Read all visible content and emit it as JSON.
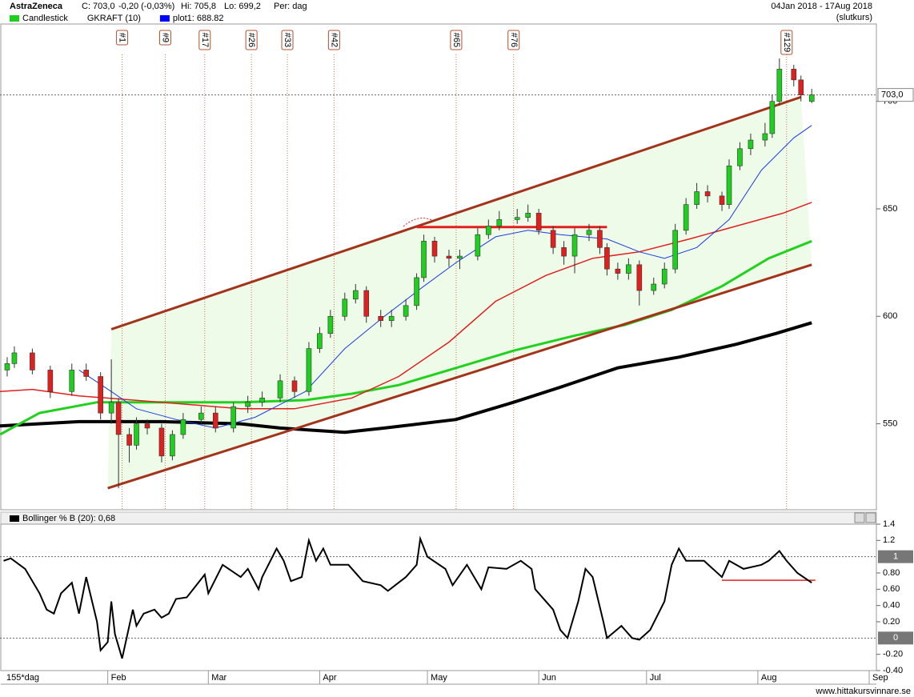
{
  "header": {
    "name": "AstraZeneca",
    "close": "C: 703,0",
    "change": "-0,20 (-0,03%)",
    "high": "Hi: 705,8",
    "low": "Lo: 699,2",
    "period": "Per: dag",
    "range": "04Jan 2018 - 17Aug 2018",
    "note": "(slutkurs)",
    "legend": [
      {
        "label": "Candlestick",
        "color": "#1ecf1e"
      },
      {
        "label": "GKRAFT (10)"
      },
      {
        "label": "plot1: 688.82",
        "color": "#0000ff"
      }
    ]
  },
  "footer": {
    "days": "155*dag",
    "site": "www.hittakursvinnare.se"
  },
  "chart_data": [
    {
      "type": "candlestick",
      "xlim": [
        2,
        246
      ],
      "ylim": [
        510,
        736
      ],
      "yticks": [
        550,
        600,
        650,
        700
      ],
      "xticks": [
        {
          "value": 32,
          "label": "Feb"
        },
        {
          "value": 60,
          "label": "Mar"
        },
        {
          "value": 91,
          "label": "Apr"
        },
        {
          "value": 121,
          "label": "May"
        },
        {
          "value": 152,
          "label": "Jun"
        },
        {
          "value": 182,
          "label": "Jul"
        },
        {
          "value": 213,
          "label": "Aug"
        },
        {
          "value": 244,
          "label": "Sep"
        }
      ],
      "up_color": "#1ecf1e",
      "down_color": "#e0201e",
      "x": [
        4,
        6,
        11,
        16,
        22,
        26,
        30,
        33,
        35,
        38,
        40,
        43,
        47,
        50,
        53,
        58,
        62,
        67,
        71,
        75,
        80,
        84,
        88,
        91,
        94,
        98,
        101,
        104,
        108,
        111,
        115,
        118,
        120,
        123,
        127,
        130,
        135,
        138,
        141,
        146,
        149,
        152,
        156,
        159,
        162,
        166,
        169,
        171,
        174,
        177,
        180,
        184,
        187,
        190,
        193,
        196,
        199,
        203,
        205,
        208,
        211,
        215,
        217,
        219,
        223,
        225,
        228
      ],
      "open": [
        575,
        578,
        583,
        575,
        565,
        575,
        572,
        555,
        560,
        545,
        540,
        550,
        548,
        535,
        545,
        552,
        555,
        548,
        558,
        560,
        562,
        570,
        565,
        585,
        592,
        600,
        608,
        612,
        600,
        598,
        600,
        605,
        618,
        635,
        628,
        627,
        628,
        638,
        642,
        645,
        646,
        648,
        640,
        632,
        628,
        638,
        640,
        632,
        622,
        620,
        624,
        612,
        615,
        622,
        640,
        652,
        658,
        656,
        652,
        670,
        678,
        682,
        685,
        700,
        715,
        710,
        700
      ],
      "high": [
        581,
        586,
        585,
        577,
        578,
        578,
        574,
        580,
        562,
        548,
        553,
        552,
        550,
        547,
        555,
        558,
        558,
        560,
        563,
        565,
        573,
        572,
        588,
        595,
        603,
        611,
        615,
        614,
        603,
        603,
        608,
        620,
        638,
        637,
        631,
        631,
        641,
        645,
        649,
        650,
        652,
        650,
        642,
        635,
        641,
        643,
        642,
        634,
        625,
        627,
        626,
        618,
        625,
        643,
        655,
        662,
        661,
        658,
        673,
        681,
        685,
        690,
        703,
        720,
        717,
        712,
        705.8
      ],
      "low": [
        572,
        576,
        573,
        562,
        563,
        570,
        552,
        550,
        520,
        532,
        538,
        545,
        532,
        533,
        543,
        550,
        546,
        546,
        555,
        558,
        560,
        562,
        563,
        583,
        590,
        598,
        606,
        597,
        595,
        595,
        598,
        603,
        616,
        625,
        623,
        622,
        626,
        636,
        640,
        643,
        644,
        638,
        629,
        624,
        620,
        635,
        629,
        619,
        617,
        617,
        605,
        610,
        613,
        620,
        638,
        650,
        653,
        649,
        650,
        668,
        675,
        679,
        683,
        698,
        707,
        700,
        699.2
      ],
      "close": [
        578,
        583,
        575,
        565,
        575,
        572,
        555,
        560,
        545,
        540,
        550,
        548,
        535,
        545,
        552,
        555,
        548,
        558,
        560,
        562,
        570,
        565,
        585,
        592,
        600,
        608,
        612,
        600,
        598,
        600,
        605,
        618,
        635,
        628,
        627,
        628,
        638,
        642,
        645,
        646,
        648,
        640,
        632,
        628,
        638,
        640,
        632,
        622,
        620,
        624,
        612,
        615,
        622,
        640,
        652,
        658,
        656,
        652,
        670,
        678,
        682,
        685,
        700,
        715,
        710,
        703,
        703
      ],
      "last_price": {
        "value": 703,
        "label": "703,0"
      },
      "overlays": [
        {
          "color": "#000000",
          "width": 4,
          "x": [
            2,
            24,
            47,
            69,
            80,
            98,
            109,
            129,
            145,
            158,
            174,
            191,
            207,
            218,
            228
          ],
          "values": [
            549,
            551,
            551,
            550,
            548,
            546,
            548,
            552,
            560,
            567,
            576,
            581,
            587,
            592,
            597
          ]
        },
        {
          "color": "#22d11e",
          "width": 3,
          "x": [
            2,
            13,
            29,
            47,
            69,
            87,
            100,
            113,
            127,
            145,
            162,
            176,
            189,
            203,
            216,
            228
          ],
          "values": [
            545,
            555,
            560,
            560,
            560,
            561,
            564,
            568,
            575,
            584,
            591,
            596,
            603,
            614,
            627,
            635
          ]
        },
        {
          "color": "#e0201e",
          "width": 1.5,
          "x": [
            2,
            11,
            24,
            47,
            69,
            84,
            100,
            113,
            127,
            140,
            154,
            167,
            180,
            194,
            207,
            220,
            228
          ],
          "values": [
            565,
            566,
            563,
            560,
            557,
            557,
            562,
            572,
            588,
            607,
            619,
            627,
            630,
            636,
            642,
            648,
            653
          ]
        },
        {
          "color": "#1a3ee0",
          "width": 1,
          "x": [
            24,
            33,
            40,
            51,
            62,
            73,
            87,
            98,
            109,
            120,
            129,
            140,
            149,
            158,
            171,
            180,
            187,
            196,
            205,
            214,
            223,
            228
          ],
          "values": [
            575,
            565,
            557,
            552,
            548,
            553,
            565,
            585,
            600,
            614,
            625,
            637,
            640,
            638,
            636,
            630,
            627,
            632,
            645,
            668,
            683,
            688.82
          ]
        }
      ],
      "trendlines": [
        {
          "color": "#a3341b",
          "x": [
            33,
            225
          ],
          "values": [
            594,
            702
          ]
        },
        {
          "color": "#a3341b",
          "x": [
            32,
            228
          ],
          "values": [
            520,
            624
          ]
        },
        {
          "color": "#e0201e",
          "x": [
            118,
            171
          ],
          "values": [
            641.5,
            641.5
          ]
        }
      ],
      "markers": [
        {
          "label": "#1",
          "x": 36
        },
        {
          "label": "#9",
          "x": 48
        },
        {
          "label": "#17",
          "x": 59
        },
        {
          "label": "#26",
          "x": 72
        },
        {
          "label": "#33",
          "x": 82
        },
        {
          "label": "#42",
          "x": 95
        },
        {
          "label": "#65",
          "x": 129
        },
        {
          "label": "#76",
          "x": 145
        },
        {
          "label": "#129",
          "x": 221
        }
      ]
    },
    {
      "type": "line",
      "title": "Bollinger % B (20): 0,68",
      "xlim": [
        2,
        246
      ],
      "ylim": [
        -0.4,
        1.4
      ],
      "yticks": [
        1.4,
        1.2,
        {
          "value": 0.8,
          "label": "0.80"
        },
        {
          "value": 0.6,
          "label": "0.60"
        },
        {
          "value": 0.4,
          "label": "0.40"
        },
        {
          "value": 0.2,
          "label": "0.20"
        },
        {
          "value": -0.2,
          "label": "-0.20"
        },
        {
          "value": -0.4,
          "label": "-0.40"
        }
      ],
      "reference_lines": [
        1,
        0
      ],
      "color": "#000000",
      "x": [
        3,
        5,
        9,
        13,
        15,
        17,
        19,
        22,
        24,
        26,
        29,
        30,
        32,
        33,
        34,
        36,
        39,
        40,
        42,
        45,
        47,
        49,
        51,
        54,
        59,
        60,
        64,
        69,
        71,
        74,
        75,
        79,
        81,
        83,
        86,
        88,
        90,
        92,
        94,
        99,
        103,
        108,
        110,
        115,
        118,
        119,
        121,
        126,
        128,
        132,
        136,
        138,
        143,
        147,
        150,
        151,
        156,
        158,
        160,
        163,
        165,
        167,
        170,
        171,
        175,
        178,
        180,
        183,
        187,
        189,
        191,
        193,
        198,
        203,
        205,
        209,
        214,
        216,
        219,
        221,
        224,
        228
      ],
      "values": [
        0.95,
        0.98,
        0.85,
        0.55,
        0.35,
        0.3,
        0.55,
        0.68,
        0.3,
        0.75,
        0.2,
        -0.15,
        -0.05,
        0.45,
        0.05,
        -0.25,
        0.35,
        0.15,
        0.3,
        0.35,
        0.25,
        0.3,
        0.48,
        0.5,
        0.78,
        0.55,
        0.9,
        0.75,
        0.85,
        0.6,
        0.75,
        1.1,
        0.95,
        0.7,
        0.75,
        1.2,
        0.95,
        1.1,
        0.9,
        0.9,
        0.7,
        0.65,
        0.58,
        0.75,
        0.9,
        1.22,
        1.0,
        0.85,
        0.65,
        0.9,
        0.6,
        0.87,
        0.85,
        0.95,
        0.85,
        0.6,
        0.35,
        0.1,
        0.0,
        0.45,
        0.85,
        0.75,
        0.2,
        0.0,
        0.15,
        0.0,
        -0.02,
        0.1,
        0.45,
        0.9,
        1.1,
        0.95,
        0.95,
        0.75,
        0.95,
        0.85,
        0.9,
        0.95,
        1.07,
        0.95,
        0.8,
        0.68
      ],
      "trendlines": [
        {
          "color": "#e0201e",
          "x": [
            203,
            229
          ],
          "values": [
            0.71,
            0.71
          ]
        }
      ]
    }
  ]
}
